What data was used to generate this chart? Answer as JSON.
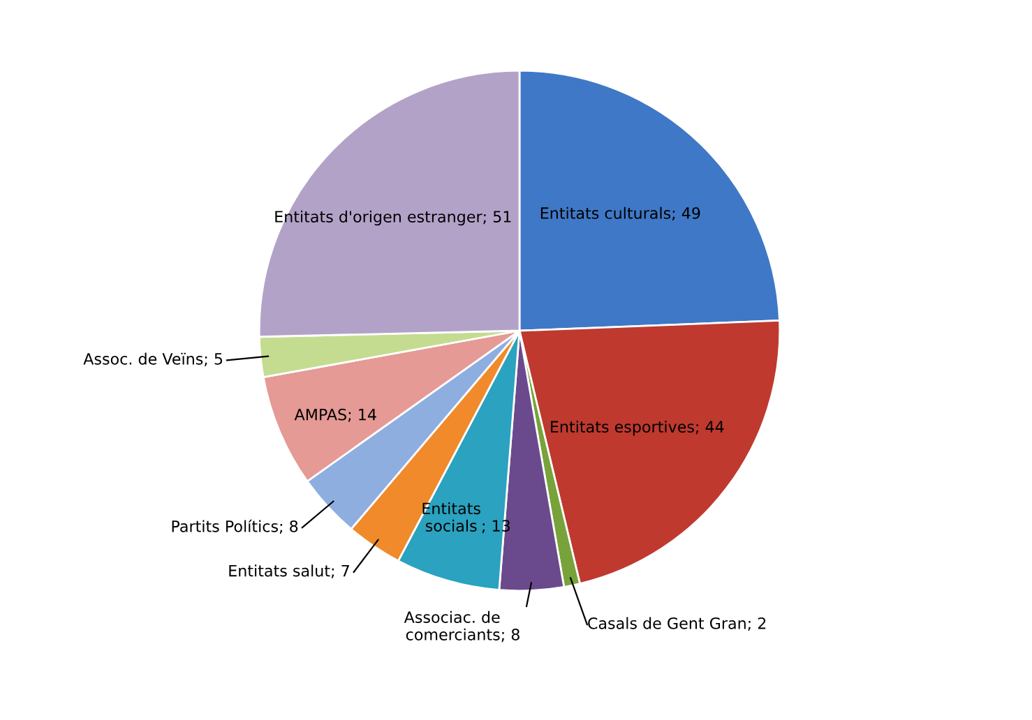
{
  "chart_data": {
    "type": "pie",
    "categories": [
      "Entitats culturals",
      "Entitats esportives",
      "Casals de Gent Gran",
      "Associac. de comerciants",
      "Entitats socials",
      "Entitats salut",
      "Partits Polítics",
      "AMPAS",
      "Assoc. de Veïns",
      "Entitats d'origen estranger"
    ],
    "values": [
      49,
      44,
      2,
      8,
      13,
      7,
      8,
      14,
      5,
      51
    ],
    "colors": [
      "#3f78c6",
      "#c0392f",
      "#77a33a",
      "#6a4a8c",
      "#2ba2bf",
      "#f08a2a",
      "#8eaee0",
      "#e59a95",
      "#c4dc90",
      "#b3a2c8"
    ],
    "value_labels": [
      "; 49",
      "; 44",
      "; 2",
      "; 8",
      "; 13",
      "; 7",
      "; 8",
      "; 14",
      "; 5",
      "; 51"
    ],
    "legend": false
  }
}
